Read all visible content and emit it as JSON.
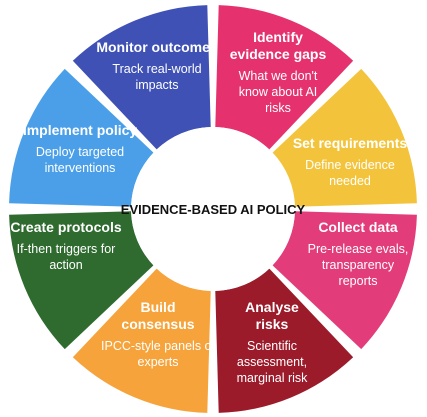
{
  "center_title": "EVIDENCE-BASED AI POLICY",
  "segments": [
    {
      "id": "monitor-outcomes",
      "title": [
        "Monitor outcomes"
      ],
      "desc": [
        "Track real-world",
        "impacts"
      ],
      "color": "#3f51b5"
    },
    {
      "id": "identify-evidence-gaps",
      "title": [
        "Identify",
        "evidence gaps"
      ],
      "desc": [
        "What we don't",
        "know about AI",
        "risks"
      ],
      "color": "#e5326f"
    },
    {
      "id": "set-requirements",
      "title": [
        "Set requirements"
      ],
      "desc": [
        "Define evidence",
        "needed"
      ],
      "color": "#f3c43b"
    },
    {
      "id": "collect-data",
      "title": [
        "Collect data"
      ],
      "desc": [
        "Pre-release evals,",
        "transparency",
        "reports"
      ],
      "color": "#e23d7a"
    },
    {
      "id": "analyse-risks",
      "title": [
        "Analyse",
        "risks"
      ],
      "desc": [
        "Scientific",
        "assessment,",
        "marginal risk"
      ],
      "color": "#9c1b2b"
    },
    {
      "id": "build-consensus",
      "title": [
        "Build",
        "consensus"
      ],
      "desc": [
        "IPCC-style panels of",
        "experts"
      ],
      "color": "#f5a33a"
    },
    {
      "id": "create-protocols",
      "title": [
        "Create protocols"
      ],
      "desc": [
        "If-then triggers for",
        "action"
      ],
      "color": "#2f6b2f"
    },
    {
      "id": "implement-policy",
      "title": [
        "Implement policy"
      ],
      "desc": [
        "Deploy targeted",
        "interventions"
      ],
      "color": "#4a9fe8"
    }
  ]
}
